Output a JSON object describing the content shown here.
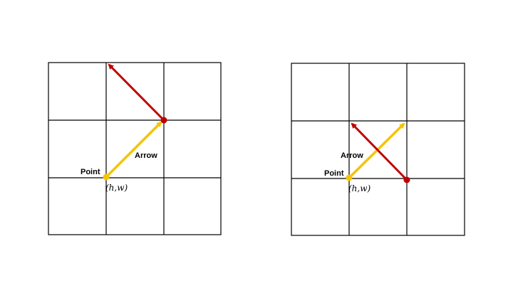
{
  "colors": {
    "grid_line": "#000000",
    "yellow_arrow": "#F5C400",
    "red_arrow": "#C00000",
    "point": "#F5C400",
    "red_dot": "#C00000"
  },
  "panels": [
    {
      "point_label": "Point",
      "arrow_label": "Arrow",
      "coord_label": "(h,w)"
    },
    {
      "point_label": "Point",
      "arrow_label": "Arrow",
      "coord_label": "(h,w)"
    }
  ]
}
